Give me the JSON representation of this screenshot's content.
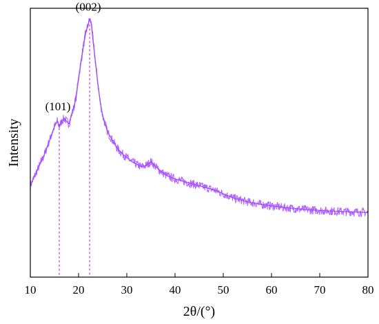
{
  "chart_data": {
    "type": "line",
    "title": "",
    "xlabel": "2θ/(°)",
    "ylabel": "Intensity",
    "xlim": [
      10,
      80
    ],
    "ylim": [
      0,
      100
    ],
    "y_ticks_labeled": false,
    "x_ticks": [
      10,
      20,
      30,
      40,
      50,
      60,
      70,
      80
    ],
    "grid": false,
    "legend": "none",
    "series": [
      {
        "color": "#a64dff",
        "x": [
          10,
          11,
          12,
          13,
          14,
          15,
          15.6,
          16,
          16.5,
          17,
          17.5,
          18,
          18.5,
          19,
          19.5,
          20,
          20.5,
          21,
          21.5,
          22,
          22.3,
          22.7,
          23,
          23.5,
          24,
          24.5,
          25,
          26,
          27,
          28,
          29,
          30,
          31,
          32,
          33,
          34,
          35,
          36,
          37,
          38,
          40,
          42,
          44,
          46,
          48,
          50,
          52,
          55,
          58,
          60,
          62,
          65,
          68,
          70,
          72,
          75,
          78,
          80
        ],
        "y": [
          34,
          38,
          42,
          46,
          51,
          56,
          58,
          56,
          58,
          59,
          58,
          57,
          60,
          63,
          67,
          74,
          80,
          86,
          91,
          94,
          96,
          94,
          88,
          80,
          72,
          65,
          60,
          54,
          51,
          48,
          46,
          44.5,
          43,
          42,
          41,
          41.5,
          43,
          41,
          39.5,
          38,
          36.5,
          35.5,
          34.5,
          33.5,
          32.5,
          31,
          29.5,
          28,
          27,
          26.5,
          26,
          25.5,
          25,
          24.8,
          24.6,
          24.4,
          24.2,
          24
        ]
      }
    ],
    "annotations": [
      {
        "text": "(101)",
        "x": 16,
        "y": 60
      },
      {
        "text": "(002)",
        "x": 22.3,
        "y": 97
      }
    ],
    "reference_lines": [
      {
        "x": 16,
        "y_top": 57,
        "color": "#cc33cc",
        "style": "dashed"
      },
      {
        "x": 22.3,
        "y_top": 94,
        "color": "#cc33cc",
        "style": "dashed"
      }
    ]
  }
}
